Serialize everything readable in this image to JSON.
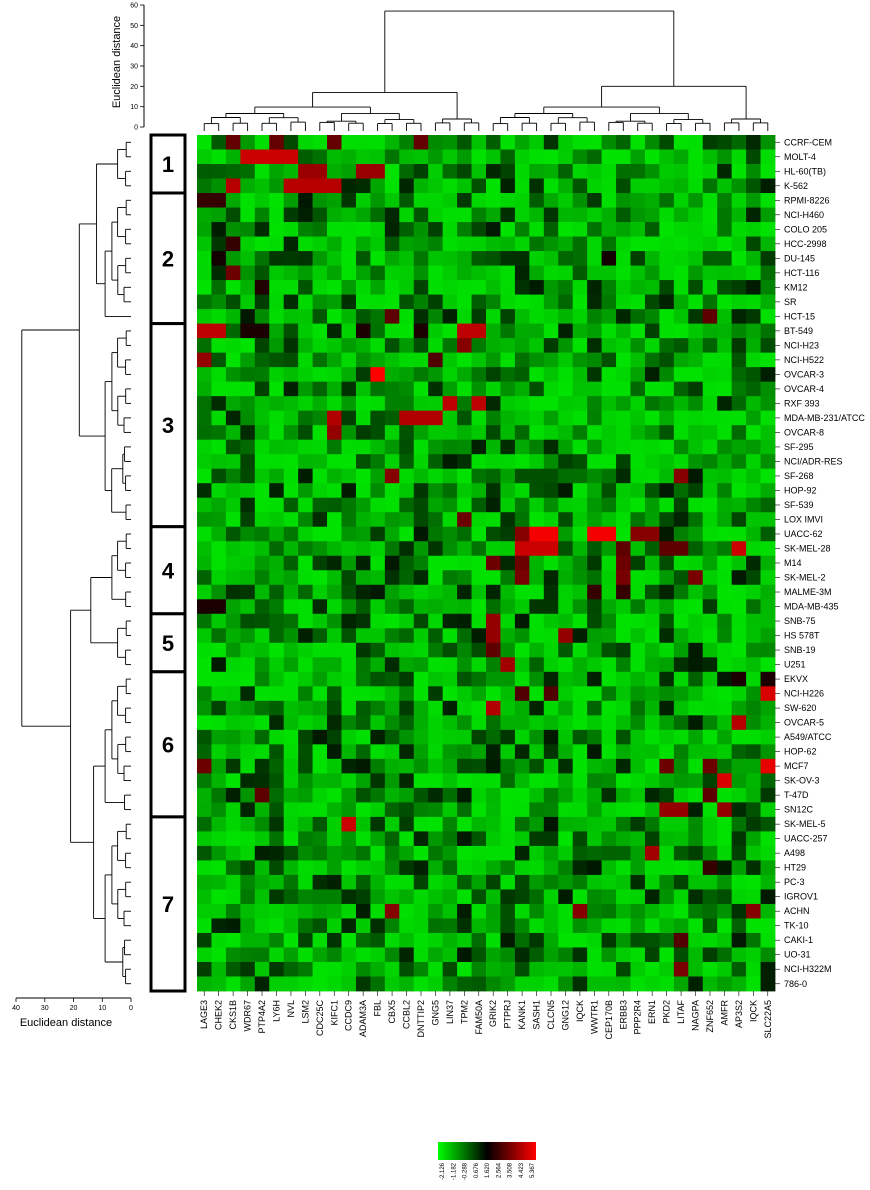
{
  "chart_data": {
    "type": "heatmap",
    "title": "",
    "top_axis": {
      "label": "Euclidean distance",
      "ticks": [
        "0",
        "10",
        "20",
        "30",
        "40",
        "50",
        "60"
      ],
      "range": [
        0,
        60
      ]
    },
    "left_axis": {
      "label": "Euclidean distance",
      "ticks": [
        "40",
        "30",
        "20",
        "10",
        "0"
      ],
      "range": [
        40,
        0
      ]
    },
    "rows": [
      "CCRF-CEM",
      "MOLT-4",
      "HL-60(TB)",
      "K-562",
      "RPMI-8226",
      "NCI-H460",
      "COLO 205",
      "HCC-2998",
      "DU-145",
      "HCT-116",
      "KM12",
      "SR",
      "HCT-15",
      "BT-549",
      "NCI-H23",
      "NCI-H522",
      "OVCAR-3",
      "OVCAR-4",
      "RXF 393",
      "MDA-MB-231/ATCC",
      "OVCAR-8",
      "SF-295",
      "NCI/ADR-RES",
      "SF-268",
      "HOP-92",
      "SF-539",
      "LOX IMVI",
      "UACC-62",
      "SK-MEL-28",
      "M14",
      "SK-MEL-2",
      "MALME-3M",
      "MDA-MB-435",
      "SNB-75",
      "HS 578T",
      "SNB-19",
      "U251",
      "EKVX",
      "NCI-H226",
      "SW-620",
      "OVCAR-5",
      "A549/ATCC",
      "HOP-62",
      "MCF7",
      "SK-OV-3",
      "T-47D",
      "SN12C",
      "SK-MEL-5",
      "UACC-257",
      "A498",
      "HT29",
      "PC-3",
      "IGROV1",
      "ACHN",
      "TK-10",
      "CAKI-1",
      "UO-31",
      "NCI-H322M",
      "786-0"
    ],
    "columns": [
      "LAGE3",
      "CHEK2",
      "CKS1B",
      "WDR67",
      "PTP4A2",
      "LY6H",
      "NVL",
      "LSM2",
      "CDC25C",
      "KIFC1",
      "CCDC9",
      "ADAM3A",
      "FBL",
      "CBX5",
      "CCBL2",
      "DNTTIP2",
      "GNG5",
      "LIN37",
      "TPM2",
      "FAM50A",
      "GRIK2",
      "PTPRJ",
      "KANK1",
      "SASH1",
      "CLCN5",
      "GNG12",
      "IQCK",
      "WWTR1",
      "CEP170B",
      "ERBB3",
      "PPP2R4",
      "ERN1",
      "PKD2",
      "LITAF",
      "NAGPA",
      "ZNF652",
      "AMFR",
      "AP3S2",
      "IQCK",
      "SLC22A5"
    ],
    "row_clusters": [
      {
        "label": "1",
        "start": 0,
        "end": 3
      },
      {
        "label": "2",
        "start": 4,
        "end": 12
      },
      {
        "label": "3",
        "start": 13,
        "end": 26
      },
      {
        "label": "4",
        "start": 27,
        "end": 32
      },
      {
        "label": "5",
        "start": 33,
        "end": 36
      },
      {
        "label": "6",
        "start": 37,
        "end": 46
      },
      {
        "label": "7",
        "start": 47,
        "end": 58
      }
    ],
    "high_cells": [
      {
        "row": "CCRF-CEM",
        "columns": [
          "CKS1B",
          "LY6H",
          "KIFC1",
          "DNTTIP2"
        ],
        "value": 3.1
      },
      {
        "row": "MOLT-4",
        "columns": [
          "WDR67",
          "PTP4A2",
          "LY6H",
          "NVL"
        ],
        "value": 4.6
      },
      {
        "row": "HL-60(TB)",
        "columns": [
          "LSM2",
          "CDC25C",
          "ADAM3A",
          "FBL"
        ],
        "value": 3.9
      },
      {
        "row": "K-562",
        "columns": [
          "CKS1B",
          "NVL",
          "LSM2",
          "CDC25C",
          "KIFC1"
        ],
        "value": 4.3
      },
      {
        "row": "RPMI-8226",
        "columns": [
          "LAGE3",
          "CHEK2"
        ],
        "value": 2.4
      },
      {
        "row": "HCC-2998",
        "columns": [
          "CKS1B"
        ],
        "value": 2.4
      },
      {
        "row": "DU-145",
        "columns": [
          "CHEK2",
          "CEP170B"
        ],
        "value": 1.9
      },
      {
        "row": "HCT-116",
        "columns": [
          "CKS1B"
        ],
        "value": 3.2
      },
      {
        "row": "KM12",
        "columns": [
          "PTP4A2"
        ],
        "value": 2.1
      },
      {
        "row": "HCT-15",
        "columns": [
          "CBX5",
          "ZNF652"
        ],
        "value": 3.0
      },
      {
        "row": "BT-549",
        "columns": [
          "LAGE3",
          "CHEK2",
          "TPM2",
          "FAM50A"
        ],
        "value": 4.4
      },
      {
        "row": "BT-549",
        "columns": [
          "WDR67",
          "PTP4A2",
          "ADAM3A",
          "DNTTIP2"
        ],
        "value": 2.0
      },
      {
        "row": "NCI-H23",
        "columns": [
          "TPM2"
        ],
        "value": 3.6
      },
      {
        "row": "NCI-H522",
        "columns": [
          "LAGE3"
        ],
        "value": 3.8
      },
      {
        "row": "NCI-H522",
        "columns": [
          "GNG5"
        ],
        "value": 2.8
      },
      {
        "row": "OVCAR-3",
        "columns": [
          "FBL"
        ],
        "value": 5.4
      },
      {
        "row": "RXF 393",
        "columns": [
          "LIN37",
          "FAM50A"
        ],
        "value": 4.4
      },
      {
        "row": "MDA-MB-231/ATCC",
        "columns": [
          "KIFC1",
          "CCBL2",
          "DNTTIP2",
          "GNG5"
        ],
        "value": 4.2
      },
      {
        "row": "OVCAR-8",
        "columns": [
          "KIFC1"
        ],
        "value": 3.8
      },
      {
        "row": "SF-268",
        "columns": [
          "CBX5",
          "LITAF"
        ],
        "value": 3.6
      },
      {
        "row": "LOX IMVI",
        "columns": [
          "TPM2"
        ],
        "value": 3.2
      },
      {
        "row": "UACC-62",
        "columns": [
          "SASH1",
          "CLCN5",
          "WWTR1",
          "CEP170B"
        ],
        "value": 5.2
      },
      {
        "row": "UACC-62",
        "columns": [
          "KANK1",
          "PPP2R4",
          "ERN1"
        ],
        "value": 3.6
      },
      {
        "row": "SK-MEL-28",
        "columns": [
          "KANK1",
          "SASH1",
          "CLCN5",
          "AP3S2"
        ],
        "value": 4.6
      },
      {
        "row": "SK-MEL-28",
        "columns": [
          "PKD2",
          "LITAF",
          "ERBB3"
        ],
        "value": 3.0
      },
      {
        "row": "M14",
        "columns": [
          "KANK1",
          "ERBB3",
          "GRIK2"
        ],
        "value": 3.2
      },
      {
        "row": "SK-MEL-2",
        "columns": [
          "KANK1",
          "ERBB3",
          "NAGPA"
        ],
        "value": 3.4
      },
      {
        "row": "MALME-3M",
        "columns": [
          "WWTR1",
          "ERBB3"
        ],
        "value": 2.4
      },
      {
        "row": "MDA-MB-435",
        "columns": [
          "LAGE3",
          "CHEK2"
        ],
        "value": 2.0
      },
      {
        "row": "SNB-75",
        "columns": [
          "GRIK2"
        ],
        "value": 3.8
      },
      {
        "row": "HS 578T",
        "columns": [
          "GRIK2",
          "GNG12"
        ],
        "value": 3.8
      },
      {
        "row": "SNB-19",
        "columns": [
          "GRIK2"
        ],
        "value": 3.0
      },
      {
        "row": "U251",
        "columns": [
          "PTPRJ"
        ],
        "value": 4.0
      },
      {
        "row": "EKVX",
        "columns": [
          "SLC22A5",
          "AP3S2"
        ],
        "value": 2.0
      },
      {
        "row": "NCI-H226",
        "columns": [
          "SLC22A5"
        ],
        "value": 4.8
      },
      {
        "row": "NCI-H226",
        "columns": [
          "CLCN5",
          "KANK1"
        ],
        "value": 2.8
      },
      {
        "row": "SW-620",
        "columns": [
          "GRIK2"
        ],
        "value": 4.2
      },
      {
        "row": "OVCAR-5",
        "columns": [
          "AP3S2"
        ],
        "value": 4.3
      },
      {
        "row": "MCF7",
        "columns": [
          "SLC22A5"
        ],
        "value": 5.0
      },
      {
        "row": "MCF7",
        "columns": [
          "LAGE3",
          "ZNF652",
          "PKD2"
        ],
        "value": 3.2
      },
      {
        "row": "SK-OV-3",
        "columns": [
          "AMFR"
        ],
        "value": 4.8
      },
      {
        "row": "T-47D",
        "columns": [
          "PTP4A2",
          "ZNF652"
        ],
        "value": 3.0
      },
      {
        "row": "SN12C",
        "columns": [
          "LITAF",
          "AMFR",
          "PKD2"
        ],
        "value": 3.8
      },
      {
        "row": "SK-MEL-5",
        "columns": [
          "CCDC9"
        ],
        "value": 4.6
      },
      {
        "row": "A498",
        "columns": [
          "ERN1"
        ],
        "value": 4.0
      },
      {
        "row": "HT29",
        "columns": [
          "ZNF652"
        ],
        "value": 2.4
      },
      {
        "row": "ACHN",
        "columns": [
          "CBX5",
          "IQCK"
        ],
        "value": 3.6
      },
      {
        "row": "CAKI-1",
        "columns": [
          "LITAF"
        ],
        "value": 2.8
      },
      {
        "row": "NCI-H322M",
        "columns": [
          "LITAF"
        ],
        "value": 3.4
      }
    ],
    "color_scale": {
      "colors": [
        "#00ff00",
        "#000000",
        "#ff0000"
      ],
      "ticks": [
        "-2.126",
        "-1.182",
        "-0.288",
        "0.676",
        "1.620",
        "2.564",
        "3.508",
        "4.423",
        "5.367"
      ],
      "range": [
        -2.126,
        5.367
      ]
    },
    "row_dendrogram": "hierarchical clustering of 59 cell lines",
    "column_dendrogram": "hierarchical clustering of 40 genes"
  }
}
